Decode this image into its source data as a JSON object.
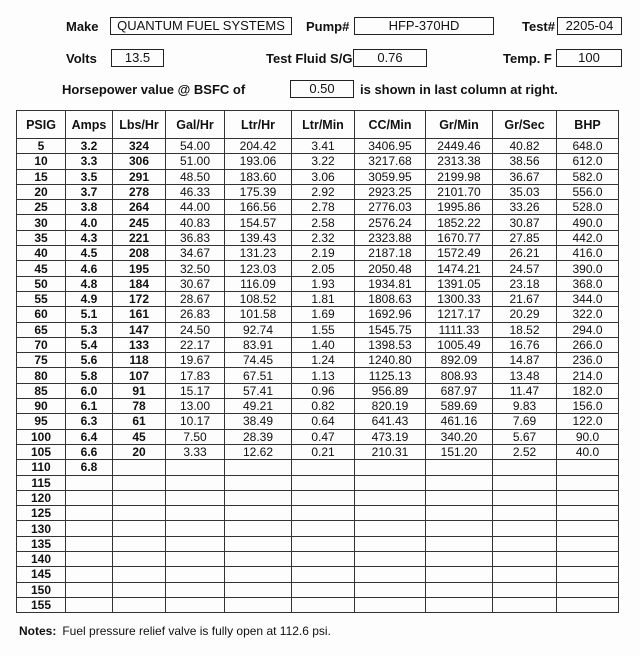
{
  "header": {
    "make_label": "Make",
    "make": "QUANTUM FUEL SYSTEMS",
    "pump_label": "Pump#",
    "pump": "HFP-370HD",
    "test_label": "Test#",
    "test": "2205-04",
    "volts_label": "Volts",
    "volts": "13.5",
    "fluid_label": "Test Fluid S/G",
    "fluid": "0.76",
    "temp_label": "Temp.  F",
    "temp": "100",
    "hp_label": "Horsepower value @  BSFC of",
    "bsfc": "0.50",
    "hp_suffix": "is shown in last column at right."
  },
  "table": {
    "columns": [
      "PSIG",
      "Amps",
      "Lbs/Hr",
      "Gal/Hr",
      "Ltr/Hr",
      "Ltr/Min",
      "CC/Min",
      "Gr/Min",
      "Gr/Sec",
      "BHP"
    ],
    "rows": [
      [
        "5",
        "3.2",
        "324",
        "54.00",
        "204.42",
        "3.41",
        "3406.95",
        "2449.46",
        "40.82",
        "648.0"
      ],
      [
        "10",
        "3.3",
        "306",
        "51.00",
        "193.06",
        "3.22",
        "3217.68",
        "2313.38",
        "38.56",
        "612.0"
      ],
      [
        "15",
        "3.5",
        "291",
        "48.50",
        "183.60",
        "3.06",
        "3059.95",
        "2199.98",
        "36.67",
        "582.0"
      ],
      [
        "20",
        "3.7",
        "278",
        "46.33",
        "175.39",
        "2.92",
        "2923.25",
        "2101.70",
        "35.03",
        "556.0"
      ],
      [
        "25",
        "3.8",
        "264",
        "44.00",
        "166.56",
        "2.78",
        "2776.03",
        "1995.86",
        "33.26",
        "528.0"
      ],
      [
        "30",
        "4.0",
        "245",
        "40.83",
        "154.57",
        "2.58",
        "2576.24",
        "1852.22",
        "30.87",
        "490.0"
      ],
      [
        "35",
        "4.3",
        "221",
        "36.83",
        "139.43",
        "2.32",
        "2323.88",
        "1670.77",
        "27.85",
        "442.0"
      ],
      [
        "40",
        "4.5",
        "208",
        "34.67",
        "131.23",
        "2.19",
        "2187.18",
        "1572.49",
        "26.21",
        "416.0"
      ],
      [
        "45",
        "4.6",
        "195",
        "32.50",
        "123.03",
        "2.05",
        "2050.48",
        "1474.21",
        "24.57",
        "390.0"
      ],
      [
        "50",
        "4.8",
        "184",
        "30.67",
        "116.09",
        "1.93",
        "1934.81",
        "1391.05",
        "23.18",
        "368.0"
      ],
      [
        "55",
        "4.9",
        "172",
        "28.67",
        "108.52",
        "1.81",
        "1808.63",
        "1300.33",
        "21.67",
        "344.0"
      ],
      [
        "60",
        "5.1",
        "161",
        "26.83",
        "101.58",
        "1.69",
        "1692.96",
        "1217.17",
        "20.29",
        "322.0"
      ],
      [
        "65",
        "5.3",
        "147",
        "24.50",
        "92.74",
        "1.55",
        "1545.75",
        "1111.33",
        "18.52",
        "294.0"
      ],
      [
        "70",
        "5.4",
        "133",
        "22.17",
        "83.91",
        "1.40",
        "1398.53",
        "1005.49",
        "16.76",
        "266.0"
      ],
      [
        "75",
        "5.6",
        "118",
        "19.67",
        "74.45",
        "1.24",
        "1240.80",
        "892.09",
        "14.87",
        "236.0"
      ],
      [
        "80",
        "5.8",
        "107",
        "17.83",
        "67.51",
        "1.13",
        "1125.13",
        "808.93",
        "13.48",
        "214.0"
      ],
      [
        "85",
        "6.0",
        "91",
        "15.17",
        "57.41",
        "0.96",
        "956.89",
        "687.97",
        "11.47",
        "182.0"
      ],
      [
        "90",
        "6.1",
        "78",
        "13.00",
        "49.21",
        "0.82",
        "820.19",
        "589.69",
        "9.83",
        "156.0"
      ],
      [
        "95",
        "6.3",
        "61",
        "10.17",
        "38.49",
        "0.64",
        "641.43",
        "461.16",
        "7.69",
        "122.0"
      ],
      [
        "100",
        "6.4",
        "45",
        "7.50",
        "28.39",
        "0.47",
        "473.19",
        "340.20",
        "5.67",
        "90.0"
      ],
      [
        "105",
        "6.6",
        "20",
        "3.33",
        "12.62",
        "0.21",
        "210.31",
        "151.20",
        "2.52",
        "40.0"
      ],
      [
        "110",
        "6.8",
        "",
        "",
        "",
        "",
        "",
        "",
        "",
        ""
      ],
      [
        "115",
        "",
        "",
        "",
        "",
        "",
        "",
        "",
        "",
        ""
      ],
      [
        "120",
        "",
        "",
        "",
        "",
        "",
        "",
        "",
        "",
        ""
      ],
      [
        "125",
        "",
        "",
        "",
        "",
        "",
        "",
        "",
        "",
        ""
      ],
      [
        "130",
        "",
        "",
        "",
        "",
        "",
        "",
        "",
        "",
        ""
      ],
      [
        "135",
        "",
        "",
        "",
        "",
        "",
        "",
        "",
        "",
        ""
      ],
      [
        "140",
        "",
        "",
        "",
        "",
        "",
        "",
        "",
        "",
        ""
      ],
      [
        "145",
        "",
        "",
        "",
        "",
        "",
        "",
        "",
        "",
        ""
      ],
      [
        "150",
        "",
        "",
        "",
        "",
        "",
        "",
        "",
        "",
        ""
      ],
      [
        "155",
        "",
        "",
        "",
        "",
        "",
        "",
        "",
        "",
        ""
      ]
    ]
  },
  "notes": {
    "label": "Notes:",
    "text": "Fuel pressure relief valve is fully open at 112.6 psi."
  }
}
